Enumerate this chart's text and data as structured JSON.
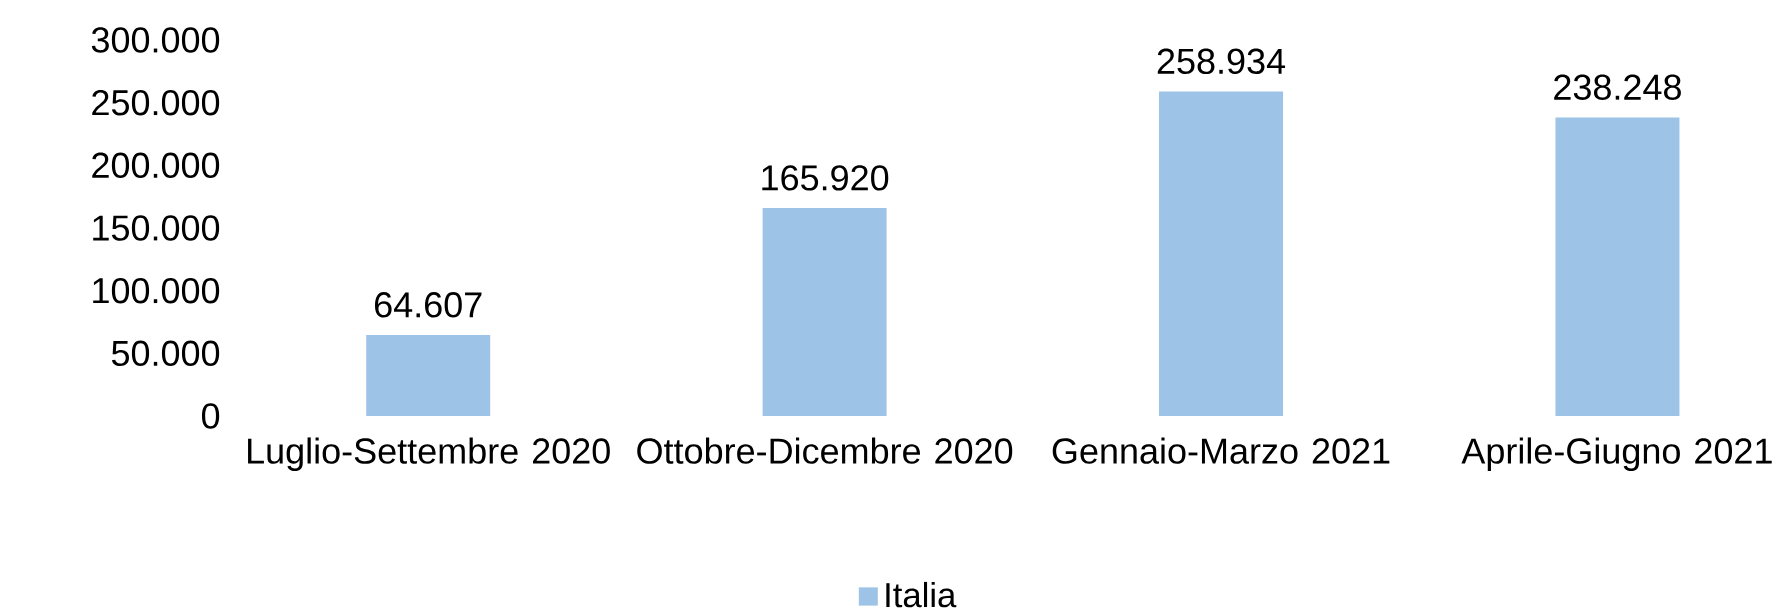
{
  "chart_data": {
    "type": "bar",
    "categories": [
      "Luglio-Settembre 2020",
      "Ottobre-Dicembre 2020",
      "Gennaio-Marzo 2021",
      "Aprile-Giugno 2021"
    ],
    "series": [
      {
        "name": "Italia",
        "color": "#9dc3e6",
        "values": [
          64607,
          165920,
          258934,
          238248
        ],
        "value_labels": [
          "64.607",
          "165.920",
          "258.934",
          "238.248"
        ]
      }
    ],
    "ylim": [
      0,
      300000
    ],
    "yticks": [
      0,
      {
        "value": 50000,
        "label": "50.000"
      },
      {
        "value": 100000,
        "label": "100.000"
      },
      {
        "value": 150000,
        "label": "150.000"
      },
      {
        "value": 200000,
        "label": "200.000"
      },
      {
        "value": 250000,
        "label": "250.000"
      },
      {
        "value": 300000,
        "label": "300.000"
      }
    ],
    "legend": "bottom"
  }
}
